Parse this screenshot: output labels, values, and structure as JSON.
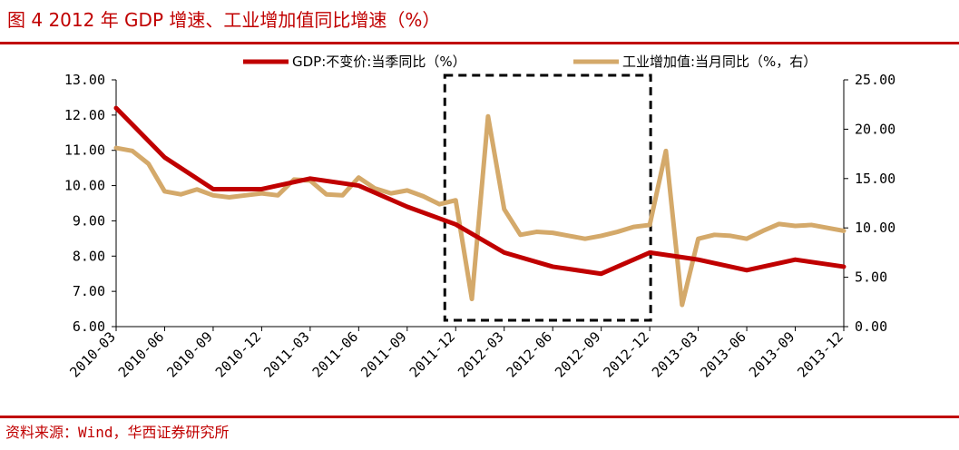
{
  "figure": {
    "title": "图 4 2012 年 GDP 增速、工业增加值同比增速（%）",
    "source": "资料来源：Wind，华西证券研究所"
  },
  "colors": {
    "accent": "#c00000",
    "gdp_line": "#c00000",
    "ind_line": "#d4a96a",
    "highlight_box": "#000000"
  },
  "chart_data": {
    "type": "line",
    "x": [
      "2010-03",
      "2010-04",
      "2010-05",
      "2010-06",
      "2010-07",
      "2010-08",
      "2010-09",
      "2010-10",
      "2010-11",
      "2010-12",
      "2011-01",
      "2011-02",
      "2011-03",
      "2011-04",
      "2011-05",
      "2011-06",
      "2011-07",
      "2011-08",
      "2011-09",
      "2011-10",
      "2011-11",
      "2011-12",
      "2012-01",
      "2012-02",
      "2012-03",
      "2012-04",
      "2012-05",
      "2012-06",
      "2012-07",
      "2012-08",
      "2012-09",
      "2012-10",
      "2012-11",
      "2012-12",
      "2013-01",
      "2013-02",
      "2013-03",
      "2013-04",
      "2013-05",
      "2013-06",
      "2013-07",
      "2013-08",
      "2013-09",
      "2013-10",
      "2013-11",
      "2013-12"
    ],
    "xtick_labels": [
      "2010-03",
      "2010-06",
      "2010-09",
      "2010-12",
      "2011-03",
      "2011-06",
      "2011-09",
      "2011-12",
      "2012-03",
      "2012-06",
      "2012-09",
      "2012-12",
      "2013-03",
      "2013-06",
      "2013-09",
      "2013-12"
    ],
    "series": [
      {
        "name": "GDP:不变价:当季同比（%）",
        "axis": "left",
        "values": [
          12.2,
          null,
          null,
          10.8,
          null,
          null,
          9.9,
          null,
          null,
          9.9,
          null,
          null,
          10.2,
          null,
          null,
          10.0,
          null,
          null,
          9.4,
          null,
          null,
          8.9,
          null,
          null,
          8.1,
          null,
          null,
          7.7,
          null,
          null,
          7.5,
          null,
          null,
          8.1,
          null,
          null,
          7.9,
          null,
          null,
          7.6,
          null,
          null,
          7.9,
          null,
          null,
          7.7
        ]
      },
      {
        "name": "工业增加值:当月同比（%，右）",
        "axis": "right",
        "values": [
          18.1,
          17.8,
          16.5,
          13.7,
          13.4,
          13.9,
          13.3,
          13.1,
          13.3,
          13.5,
          13.3,
          14.9,
          14.8,
          13.4,
          13.3,
          15.1,
          14.0,
          13.5,
          13.8,
          13.2,
          12.4,
          12.8,
          2.8,
          21.3,
          11.9,
          9.3,
          9.6,
          9.5,
          9.2,
          8.9,
          9.2,
          9.6,
          10.1,
          10.3,
          17.8,
          2.2,
          8.9,
          9.3,
          9.2,
          8.9,
          9.7,
          10.4,
          10.2,
          10.3,
          10.0,
          9.7
        ]
      }
    ],
    "yleft_ticks": [
      "13.00",
      "12.00",
      "11.00",
      "10.00",
      "9.00",
      "8.00",
      "7.00",
      "6.00"
    ],
    "yright_ticks": [
      "25.00",
      "20.00",
      "15.00",
      "10.00",
      "5.00",
      "0.00"
    ],
    "ylim_left": [
      6,
      13
    ],
    "ylim_right": [
      0,
      25
    ],
    "grid": false,
    "legend_position": "top",
    "highlight_range": [
      "2011-12",
      "2012-12"
    ]
  }
}
